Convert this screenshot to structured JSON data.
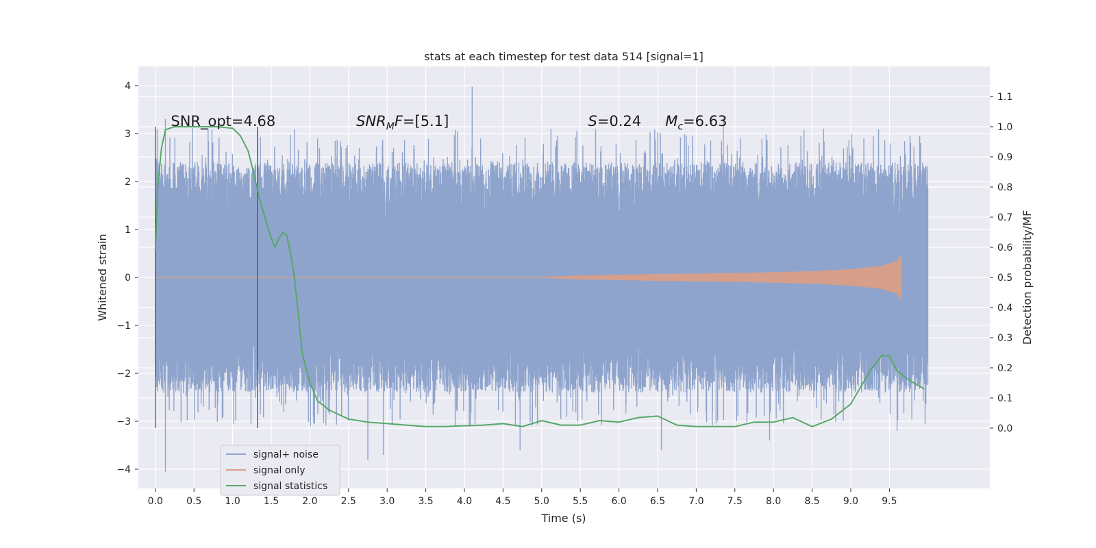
{
  "chart_data": {
    "type": "line",
    "title": "stats at each timestep for test data 514 [signal=1]",
    "xlabel": "Time (s)",
    "ylabel_left": "Whitened strain",
    "ylabel_right": "Detection probability/MF",
    "xlim": [
      -0.22,
      10.8
    ],
    "ylim_left": [
      -4.4,
      4.4
    ],
    "ylim_right": [
      -0.2,
      1.2
    ],
    "grid": true,
    "x_ticks": [
      0.0,
      0.5,
      1.0,
      1.5,
      2.0,
      2.5,
      3.0,
      3.5,
      4.0,
      4.5,
      5.0,
      5.5,
      6.0,
      6.5,
      7.0,
      7.5,
      8.0,
      8.5,
      9.0,
      9.5
    ],
    "x_tick_labels": [
      "0.0",
      "0.5",
      "1.0",
      "1.5",
      "2.0",
      "2.5",
      "3.0",
      "3.5",
      "4.0",
      "4.5",
      "5.0",
      "5.5",
      "6.0",
      "6.5",
      "7.0",
      "7.5",
      "8.0",
      "8.5",
      "9.0",
      "9.5"
    ],
    "y_left_ticks": [
      4,
      3,
      2,
      1,
      0,
      -1,
      -2,
      -3,
      -4
    ],
    "y_left_tick_labels": [
      "4",
      "3",
      "2",
      "1",
      "0",
      "−1",
      "−2",
      "−3",
      "−4"
    ],
    "y_right_ticks": [
      1.1,
      1.0,
      0.9,
      0.8,
      0.7,
      0.6,
      0.5,
      0.4,
      0.3,
      0.2,
      0.1,
      0.0
    ],
    "y_right_tick_labels": [
      "1.1",
      "1.0",
      "0.9",
      "0.8",
      "0.7",
      "0.6",
      "0.5",
      "0.4",
      "0.3",
      "0.2",
      "0.1",
      "0.0"
    ],
    "legend_position": "lower-left",
    "legend": [
      "signal+ noise",
      "signal only",
      "signal statistics"
    ],
    "colors": {
      "noise": "#8fa4cc",
      "signal": "#dd9f84",
      "stats": "#55a868",
      "vline": "#555555",
      "plot_bg": "#eaeaf2",
      "grid": "#ffffff"
    },
    "noise_series": {
      "name": "signal+ noise",
      "x_range": [
        0.0,
        10.0
      ],
      "typical_range": [
        -2.4,
        2.4
      ],
      "extremes": [
        {
          "x": 0.13,
          "y": -4.05
        },
        {
          "x": 0.13,
          "y": 3.3
        },
        {
          "x": 2.75,
          "y": -3.8
        },
        {
          "x": 2.95,
          "y": -3.7
        },
        {
          "x": 4.1,
          "y": 3.98
        },
        {
          "x": 4.72,
          "y": -3.6
        },
        {
          "x": 6.55,
          "y": -3.6
        },
        {
          "x": 7.35,
          "y": 3.35
        },
        {
          "x": 7.95,
          "y": -3.4
        },
        {
          "x": 9.6,
          "y": -3.2
        }
      ]
    },
    "signal_series": {
      "name": "signal only",
      "x_range": [
        0.0,
        9.65
      ],
      "envelope": [
        [
          0.0,
          0.0
        ],
        [
          5.0,
          0.0
        ],
        [
          5.5,
          0.03
        ],
        [
          6.5,
          0.06
        ],
        [
          7.5,
          0.08
        ],
        [
          8.5,
          0.12
        ],
        [
          9.0,
          0.16
        ],
        [
          9.4,
          0.23
        ],
        [
          9.6,
          0.33
        ],
        [
          9.65,
          0.45
        ]
      ]
    },
    "stats_series": {
      "name": "signal statistics",
      "x": [
        0.0,
        0.03,
        0.08,
        0.13,
        0.25,
        0.5,
        0.8,
        1.0,
        1.1,
        1.2,
        1.25,
        1.35,
        1.45,
        1.5,
        1.55,
        1.6,
        1.65,
        1.7,
        1.75,
        1.8,
        1.85,
        1.9,
        2.0,
        2.1,
        2.25,
        2.5,
        2.75,
        3.0,
        3.25,
        3.5,
        3.75,
        4.0,
        4.25,
        4.5,
        4.75,
        5.0,
        5.25,
        5.5,
        5.75,
        6.0,
        6.25,
        6.5,
        6.75,
        7.0,
        7.25,
        7.5,
        7.75,
        8.0,
        8.25,
        8.5,
        8.75,
        9.0,
        9.25,
        9.4,
        9.5,
        9.6,
        9.75,
        9.95
      ],
      "y": [
        0.59,
        0.8,
        0.93,
        0.99,
        1.0,
        1.0,
        1.0,
        0.995,
        0.97,
        0.92,
        0.87,
        0.76,
        0.67,
        0.63,
        0.6,
        0.63,
        0.65,
        0.64,
        0.58,
        0.5,
        0.38,
        0.25,
        0.15,
        0.09,
        0.06,
        0.03,
        0.02,
        0.015,
        0.01,
        0.005,
        0.005,
        0.008,
        0.01,
        0.015,
        0.005,
        0.025,
        0.01,
        0.01,
        0.025,
        0.02,
        0.035,
        0.04,
        0.01,
        0.005,
        0.005,
        0.005,
        0.02,
        0.02,
        0.035,
        0.005,
        0.03,
        0.08,
        0.19,
        0.24,
        0.24,
        0.19,
        0.16,
        0.13
      ]
    },
    "vertical_lines_x": [
      0.0,
      1.32
    ],
    "annotations": [
      {
        "x": 0.2,
        "y": 1.0,
        "text": "SNR_opt=4.68",
        "math": false
      },
      {
        "x": 2.6,
        "y": 1.0,
        "prefix": "SNR",
        "sub": "M",
        "suffix": "F=[5.1]",
        "math": true
      },
      {
        "x": 5.6,
        "y": 1.0,
        "prefix": "S",
        "sub": "",
        "suffix": "=0.24",
        "math": true
      },
      {
        "x": 6.6,
        "y": 1.0,
        "prefix": "M",
        "sub": "c",
        "suffix": "=6.63",
        "math": true
      }
    ]
  }
}
